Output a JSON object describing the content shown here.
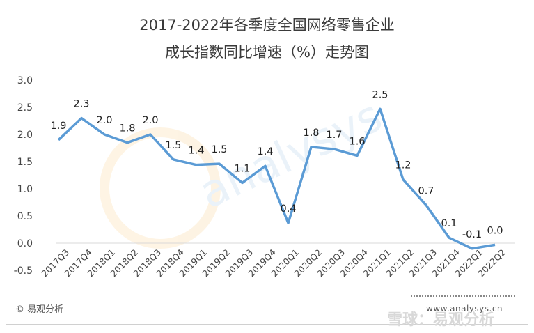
{
  "title_line1": "2017-2022年各季度全国网络零售企业",
  "title_line2": "成长指数同比增速（%）走势图",
  "footer_left": "© 易观分析",
  "footer_right": "www.analysys.cn",
  "watermark_text": "雪球：易观分析",
  "colors": {
    "line": "#5b9bd5",
    "axis": "#d9d9d9"
  },
  "chart_data": {
    "type": "line",
    "title": "2017-2022年各季度全国网络零售企业成长指数同比增速（%）走势图",
    "categories": [
      "2017Q3",
      "2017Q4",
      "2018Q1",
      "2018Q2",
      "2018Q3",
      "2018Q4",
      "2019Q1",
      "2019Q2",
      "2019Q3",
      "2019Q4",
      "2020Q1",
      "2020Q2",
      "2020Q3",
      "2020Q4",
      "2021Q1",
      "2021Q2",
      "2021Q3",
      "2021Q4",
      "2022Q1",
      "2022Q2"
    ],
    "values": [
      1.9,
      2.3,
      2.0,
      1.85,
      2.0,
      1.54,
      1.44,
      1.46,
      1.11,
      1.42,
      0.37,
      1.77,
      1.73,
      1.61,
      2.47,
      1.17,
      0.7,
      0.1,
      -0.1,
      -0.03
    ],
    "data_labels": [
      "1.9",
      "2.3",
      "2.0",
      "1.8",
      "2.0",
      "1.5",
      "1.4",
      "1.5",
      "1.1",
      "1.4",
      "0.4",
      "1.8",
      "1.7",
      "1.6",
      "2.5",
      "1.2",
      "0.7",
      "0.1",
      "-0.1",
      "0.0"
    ],
    "yticks": [
      "3.0",
      "2.5",
      "2.0",
      "1.5",
      "1.0",
      "0.5",
      "0.0",
      "-0.5"
    ],
    "ylim": [
      -0.5,
      3.0
    ],
    "grid": false,
    "legend": "none"
  }
}
